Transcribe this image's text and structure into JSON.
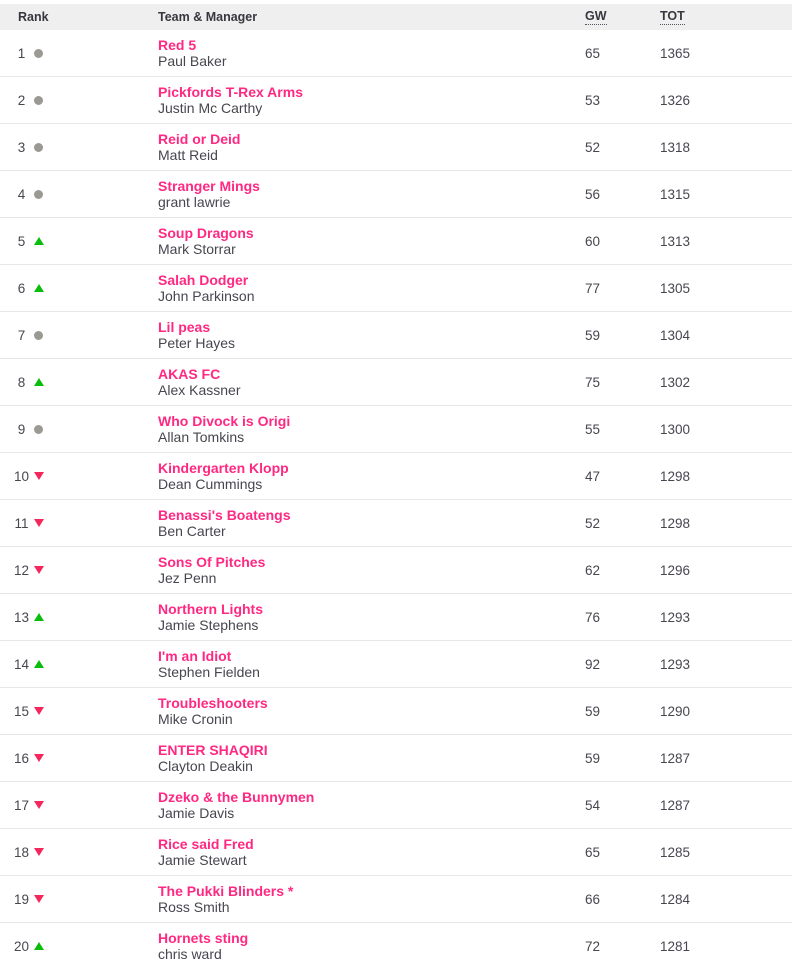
{
  "table": {
    "headers": {
      "rank": "Rank",
      "team": "Team & Manager",
      "gw": "GW",
      "tot": "TOT"
    },
    "rows": [
      {
        "rank": "1",
        "movement": "same",
        "team": "Red 5",
        "manager": "Paul Baker",
        "gw": "65",
        "tot": "1365"
      },
      {
        "rank": "2",
        "movement": "same",
        "team": "Pickfords T-Rex Arms",
        "manager": "Justin Mc Carthy",
        "gw": "53",
        "tot": "1326"
      },
      {
        "rank": "3",
        "movement": "same",
        "team": "Reid or Deid",
        "manager": "Matt Reid",
        "gw": "52",
        "tot": "1318"
      },
      {
        "rank": "4",
        "movement": "same",
        "team": "Stranger Mings",
        "manager": "grant lawrie",
        "gw": "56",
        "tot": "1315"
      },
      {
        "rank": "5",
        "movement": "up",
        "team": "Soup Dragons",
        "manager": "Mark Storrar",
        "gw": "60",
        "tot": "1313"
      },
      {
        "rank": "6",
        "movement": "up",
        "team": "Salah Dodger",
        "manager": "John Parkinson",
        "gw": "77",
        "tot": "1305"
      },
      {
        "rank": "7",
        "movement": "same",
        "team": "Lil peas",
        "manager": "Peter Hayes",
        "gw": "59",
        "tot": "1304"
      },
      {
        "rank": "8",
        "movement": "up",
        "team": "AKAS FC",
        "manager": "Alex Kassner",
        "gw": "75",
        "tot": "1302"
      },
      {
        "rank": "9",
        "movement": "same",
        "team": "Who Divock is Origi",
        "manager": "Allan Tomkins",
        "gw": "55",
        "tot": "1300"
      },
      {
        "rank": "10",
        "movement": "down",
        "team": "Kindergarten Klopp",
        "manager": "Dean Cummings",
        "gw": "47",
        "tot": "1298"
      },
      {
        "rank": "11",
        "movement": "down",
        "team": "Benassi's Boatengs",
        "manager": "Ben Carter",
        "gw": "52",
        "tot": "1298"
      },
      {
        "rank": "12",
        "movement": "down",
        "team": "Sons Of Pitches",
        "manager": "Jez Penn",
        "gw": "62",
        "tot": "1296"
      },
      {
        "rank": "13",
        "movement": "up",
        "team": "Northern Lights",
        "manager": "Jamie Stephens",
        "gw": "76",
        "tot": "1293"
      },
      {
        "rank": "14",
        "movement": "up",
        "team": "I'm an Idiot",
        "manager": "Stephen Fielden",
        "gw": "92",
        "tot": "1293"
      },
      {
        "rank": "15",
        "movement": "down",
        "team": "Troubleshooters",
        "manager": "Mike Cronin",
        "gw": "59",
        "tot": "1290"
      },
      {
        "rank": "16",
        "movement": "down",
        "team": "ENTER SHAQIRI",
        "manager": "Clayton Deakin",
        "gw": "59",
        "tot": "1287"
      },
      {
        "rank": "17",
        "movement": "down",
        "team": "Dzeko & the Bunnymen",
        "manager": "Jamie Davis",
        "gw": "54",
        "tot": "1287"
      },
      {
        "rank": "18",
        "movement": "down",
        "team": "Rice said Fred",
        "manager": "Jamie Stewart",
        "gw": "65",
        "tot": "1285"
      },
      {
        "rank": "19",
        "movement": "down",
        "team": "The Pukki Blinders *",
        "manager": "Ross Smith",
        "gw": "66",
        "tot": "1284"
      },
      {
        "rank": "20",
        "movement": "up",
        "team": "Hornets sting",
        "manager": "chris ward",
        "gw": "72",
        "tot": "1281"
      }
    ]
  },
  "icons": {
    "up": "rank-up-icon",
    "down": "rank-down-icon",
    "same": "rank-same-icon"
  },
  "colors": {
    "team_link_pink": "#ff2882",
    "movement_up_green": "#0bbd0b",
    "movement_down_pink": "#f5265c",
    "movement_same_grey": "#9a9a92",
    "header_background": "#efefef",
    "body_text": "#47464f",
    "row_divider": "#e7e7e7"
  }
}
